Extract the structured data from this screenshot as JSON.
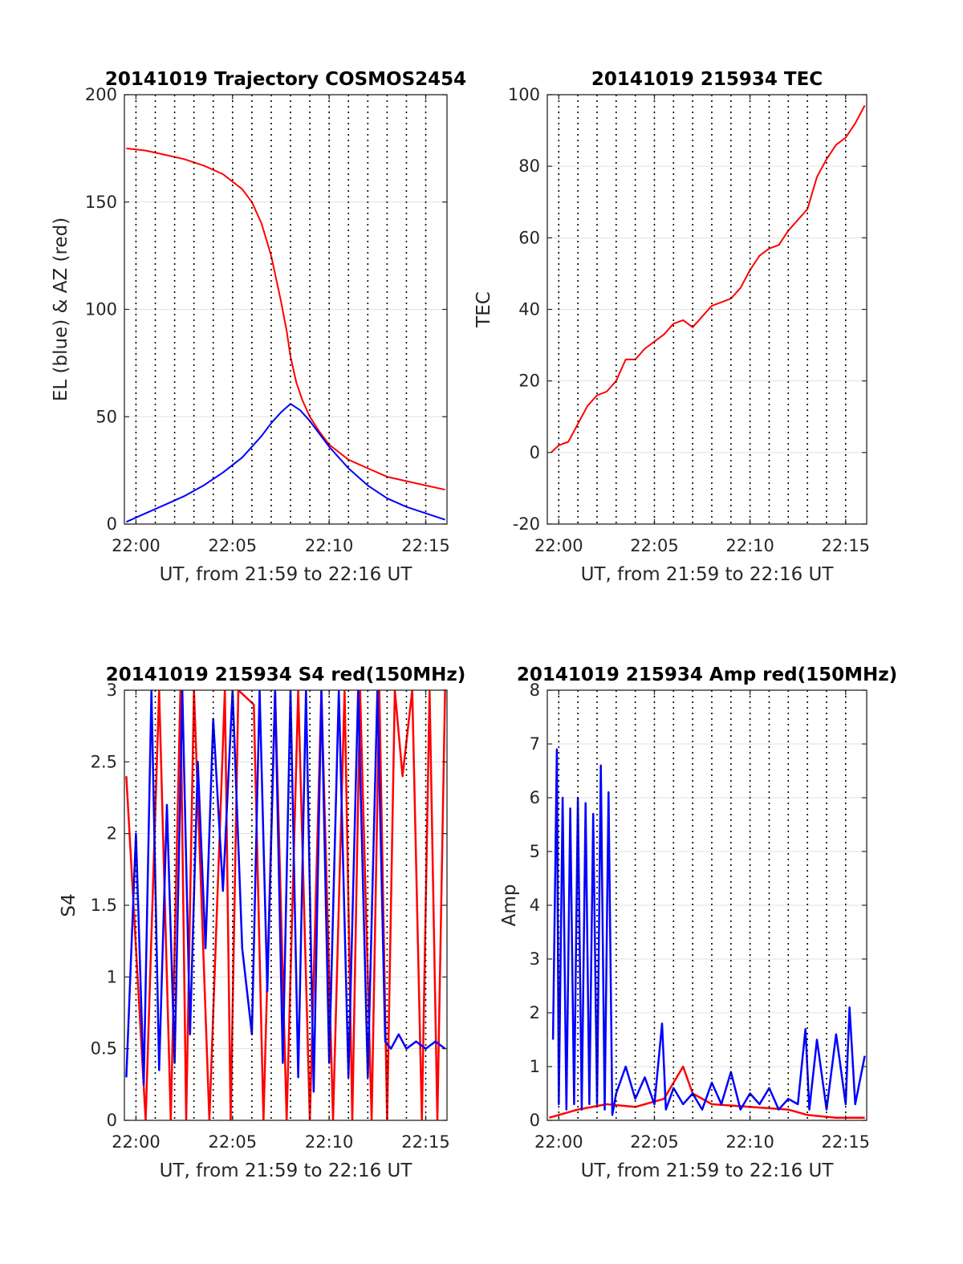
{
  "chart_data": [
    {
      "type": "line",
      "title": "20141019 Trajectory COSMOS2454",
      "xlabel": "UT, from 21:59 to 22:16 UT",
      "ylabel": "EL (blue) & AZ (red)",
      "x_unit": "minutes after 22:00 UT",
      "xlim": [
        -0.6,
        16.1
      ],
      "ylim": [
        0,
        200
      ],
      "x_ticks": [
        0,
        5,
        10,
        15
      ],
      "x_ticklabels": [
        "22:00",
        "22:05",
        "22:10",
        "22:15"
      ],
      "y_ticks": [
        0,
        50,
        100,
        150,
        200
      ],
      "y_ticklabels": [
        "0",
        "50",
        "100",
        "150",
        "200"
      ],
      "grid": true,
      "series": [
        {
          "color": "#ff0000",
          "x": [
            -0.5,
            0.5,
            1.5,
            2.5,
            3.5,
            4.5,
            5.5,
            6.0,
            6.5,
            7.0,
            7.5,
            7.8,
            8.0,
            8.3,
            8.6,
            9.0,
            9.5,
            10.0,
            11.0,
            12.0,
            13.0,
            14.0,
            15.0,
            16.0
          ],
          "y": [
            175,
            174,
            172,
            170,
            167,
            163,
            156,
            150,
            140,
            125,
            104,
            90,
            78,
            66,
            58,
            50,
            43,
            37,
            30,
            26,
            22,
            20,
            18,
            16
          ]
        },
        {
          "color": "#0000ff",
          "x": [
            -0.5,
            0.5,
            1.5,
            2.5,
            3.5,
            4.5,
            5.5,
            6.0,
            6.5,
            7.0,
            7.5,
            8.0,
            8.5,
            9.0,
            9.5,
            10.0,
            11.0,
            12.0,
            13.0,
            14.0,
            15.0,
            16.0
          ],
          "y": [
            1,
            5,
            9,
            13,
            18,
            24,
            31,
            36,
            41,
            47,
            52,
            56,
            53,
            48,
            42,
            36,
            26,
            18,
            12,
            8,
            5,
            2
          ]
        }
      ]
    },
    {
      "type": "line",
      "title": "20141019 215934 TEC",
      "xlabel": "UT, from 21:59 to 22:16 UT",
      "ylabel": "TEC",
      "x_unit": "minutes after 22:00 UT",
      "xlim": [
        -0.6,
        16.1
      ],
      "ylim": [
        -20,
        100
      ],
      "x_ticks": [
        0,
        5,
        10,
        15
      ],
      "x_ticklabels": [
        "22:00",
        "22:05",
        "22:10",
        "22:15"
      ],
      "y_ticks": [
        -20,
        0,
        20,
        40,
        60,
        80,
        100
      ],
      "y_ticklabels": [
        "-20",
        "0",
        "20",
        "40",
        "60",
        "80",
        "100"
      ],
      "grid": true,
      "series": [
        {
          "color": "#ff0000",
          "x": [
            -0.4,
            0.0,
            0.5,
            1.0,
            1.5,
            2.0,
            2.5,
            3.0,
            3.5,
            4.0,
            4.5,
            5.0,
            5.5,
            6.0,
            6.5,
            7.0,
            7.5,
            8.0,
            8.5,
            9.0,
            9.5,
            10.0,
            10.5,
            11.0,
            11.5,
            12.0,
            12.5,
            13.0,
            13.5,
            14.0,
            14.5,
            15.0,
            15.5,
            16.0
          ],
          "y": [
            0,
            2,
            3,
            8,
            13,
            16,
            17,
            20,
            26,
            26,
            29,
            31,
            33,
            36,
            37,
            35,
            38,
            41,
            42,
            43,
            46,
            51,
            55,
            57,
            58,
            62,
            65,
            68,
            77,
            82,
            86,
            88,
            92,
            97
          ]
        }
      ]
    },
    {
      "type": "line",
      "title": "20141019 215934 S4 red(150MHz)",
      "xlabel": "UT, from 21:59 to 22:16 UT",
      "ylabel": "S4",
      "x_unit": "minutes after 22:00 UT",
      "xlim": [
        -0.6,
        16.1
      ],
      "ylim": [
        0,
        3
      ],
      "x_ticks": [
        0,
        5,
        10,
        15
      ],
      "x_ticklabels": [
        "22:00",
        "22:05",
        "22:10",
        "22:15"
      ],
      "y_ticks": [
        0,
        0.5,
        1,
        1.5,
        2,
        2.5,
        3
      ],
      "y_ticklabels": [
        "0",
        "0.5",
        "1",
        "1.5",
        "2",
        "2.5",
        "3"
      ],
      "grid": true,
      "series": [
        {
          "color": "#ff0000",
          "x": [
            -0.5,
            0.5,
            1.2,
            1.8,
            2.3,
            2.6,
            3.0,
            3.8,
            4.6,
            4.9,
            5.3,
            6.1,
            6.6,
            7.2,
            7.8,
            8.4,
            9.0,
            9.6,
            10.2,
            10.8,
            11.2,
            11.6,
            12.2,
            12.6,
            13.0,
            13.4,
            13.8,
            14.3,
            14.8,
            15.2,
            15.6,
            16.0
          ],
          "y": [
            2.4,
            0,
            3,
            0,
            3,
            0,
            3,
            0,
            3,
            0,
            3,
            2.9,
            0,
            3,
            0,
            3,
            0,
            3,
            0,
            3,
            0,
            3,
            0,
            3,
            0,
            3,
            2.4,
            3,
            0,
            3,
            0,
            3
          ]
        },
        {
          "color": "#0000ff",
          "x": [
            -0.5,
            0.0,
            0.4,
            0.8,
            1.2,
            1.6,
            2.0,
            2.4,
            2.8,
            3.2,
            3.6,
            4.0,
            4.5,
            5.0,
            5.5,
            6.0,
            6.4,
            6.8,
            7.2,
            7.6,
            8.0,
            8.4,
            8.8,
            9.2,
            9.6,
            10.0,
            10.5,
            11.0,
            11.5,
            12.0,
            12.5,
            12.9,
            13.2,
            13.6,
            14.0,
            14.5,
            15.0,
            15.5,
            16.0
          ],
          "y": [
            0.3,
            2.0,
            0.25,
            3.0,
            0.35,
            2.2,
            0.4,
            3.0,
            0.6,
            2.5,
            1.2,
            2.8,
            1.6,
            3.0,
            1.2,
            0.6,
            3.0,
            0.9,
            3.0,
            0.4,
            3.0,
            0.3,
            3.0,
            0.2,
            3.0,
            0.4,
            3.0,
            0.3,
            3.0,
            0.3,
            3.0,
            0.55,
            0.5,
            0.6,
            0.5,
            0.55,
            0.5,
            0.55,
            0.5
          ]
        }
      ]
    },
    {
      "type": "line",
      "title": "20141019 215934 Amp red(150MHz)",
      "xlabel": "UT, from 21:59 to 22:16 UT",
      "ylabel": "Amp",
      "x_unit": "minutes after 22:00 UT",
      "xlim": [
        -0.6,
        16.1
      ],
      "ylim": [
        0,
        8
      ],
      "x_ticks": [
        0,
        5,
        10,
        15
      ],
      "x_ticklabels": [
        "22:00",
        "22:05",
        "22:10",
        "22:15"
      ],
      "y_ticks": [
        0,
        1,
        2,
        3,
        4,
        5,
        6,
        7,
        8
      ],
      "y_ticklabels": [
        "0",
        "1",
        "2",
        "3",
        "4",
        "5",
        "6",
        "7",
        "8"
      ],
      "grid": true,
      "series": [
        {
          "color": "#ff0000",
          "x": [
            -0.5,
            1.0,
            2.5,
            4.0,
            5.5,
            6.5,
            7.0,
            8.0,
            10.0,
            12.0,
            13.0,
            14.5,
            16.0
          ],
          "y": [
            0.05,
            0.2,
            0.3,
            0.25,
            0.4,
            1.0,
            0.5,
            0.3,
            0.25,
            0.2,
            0.1,
            0.05,
            0.05
          ]
        },
        {
          "color": "#0000ff",
          "x": [
            -0.3,
            -0.1,
            0.0,
            0.2,
            0.4,
            0.6,
            0.8,
            1.0,
            1.2,
            1.4,
            1.6,
            1.8,
            2.0,
            2.2,
            2.4,
            2.6,
            2.8,
            3.0,
            3.5,
            4.0,
            4.5,
            5.0,
            5.4,
            5.6,
            6.0,
            6.5,
            7.0,
            7.5,
            8.0,
            8.5,
            9.0,
            9.5,
            10.0,
            10.5,
            11.0,
            11.5,
            12.0,
            12.5,
            12.9,
            13.1,
            13.5,
            14.0,
            14.5,
            15.0,
            15.2,
            15.5,
            16.0
          ],
          "y": [
            1.5,
            6.9,
            0.3,
            6.0,
            0.2,
            5.8,
            0.3,
            6.0,
            0.2,
            5.9,
            0.3,
            5.7,
            0.3,
            6.6,
            0.2,
            6.1,
            0.1,
            0.5,
            1.0,
            0.4,
            0.8,
            0.3,
            1.8,
            0.2,
            0.6,
            0.3,
            0.5,
            0.2,
            0.7,
            0.3,
            0.9,
            0.2,
            0.5,
            0.3,
            0.6,
            0.2,
            0.4,
            0.3,
            1.7,
            0.2,
            1.5,
            0.2,
            1.6,
            0.3,
            2.1,
            0.3,
            1.2
          ]
        }
      ]
    }
  ]
}
